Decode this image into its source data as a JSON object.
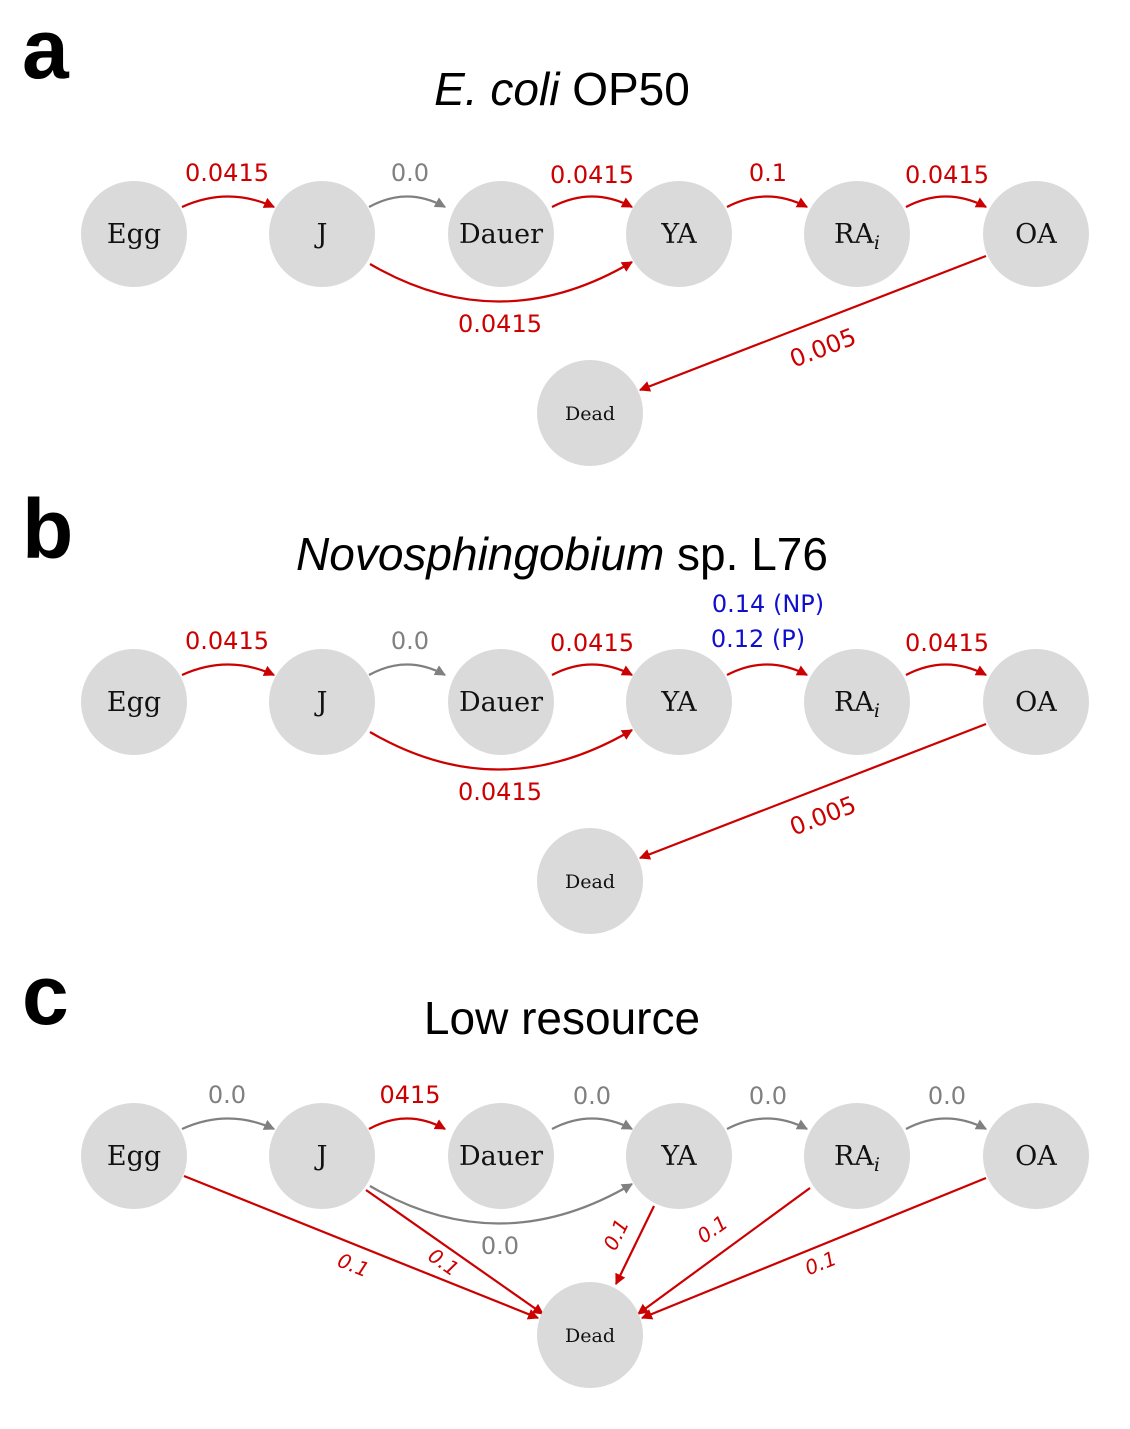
{
  "colors": {
    "red": "#cc0000",
    "gray": "#808080",
    "blue": "#1010cc",
    "node_fill": "#dadada"
  },
  "panels": [
    {
      "letter": "a",
      "title_italic": "E. coli",
      "title_rest": " OP50",
      "nodes": {
        "egg": "Egg",
        "j": "J",
        "dauer": "Dauer",
        "ya": "YA",
        "ra": "RA",
        "ra_sub": "i",
        "oa": "OA",
        "dead": "Dead"
      },
      "rates": {
        "egg_j": "0.0415",
        "j_dauer": "0.0",
        "dauer_ya": "0.0415",
        "ya_ra": "0.1",
        "ra_oa": "0.0415",
        "j_ya": "0.0415",
        "oa_dead": "0.005"
      }
    },
    {
      "letter": "b",
      "title_italic": "Novosphingobium",
      "title_rest": " sp. L76",
      "nodes": {
        "egg": "Egg",
        "j": "J",
        "dauer": "Dauer",
        "ya": "YA",
        "ra": "RA",
        "ra_sub": "i",
        "oa": "OA",
        "dead": "Dead"
      },
      "rates": {
        "egg_j": "0.0415",
        "j_dauer": "0.0",
        "dauer_ya": "0.0415",
        "ya_ra_np": "0.14 (NP)",
        "ya_ra_p": "0.12 (P)",
        "ra_oa": "0.0415",
        "j_ya": "0.0415",
        "oa_dead": "0.005"
      }
    },
    {
      "letter": "c",
      "title": "Low resource",
      "nodes": {
        "egg": "Egg",
        "j": "J",
        "dauer": "Dauer",
        "ya": "YA",
        "ra": "RA",
        "ra_sub": "i",
        "oa": "OA",
        "dead": "Dead"
      },
      "rates": {
        "egg_j": "0.0",
        "j_dauer": "0415",
        "dauer_ya": "0.0",
        "ya_ra": "0.0",
        "ra_oa": "0.0",
        "j_ya": "0.0",
        "egg_dead": "0.1",
        "j_dead": "0.1",
        "ya_dead": "0.1",
        "ra_dead": "0.1",
        "oa_dead": "0.1"
      }
    }
  ]
}
